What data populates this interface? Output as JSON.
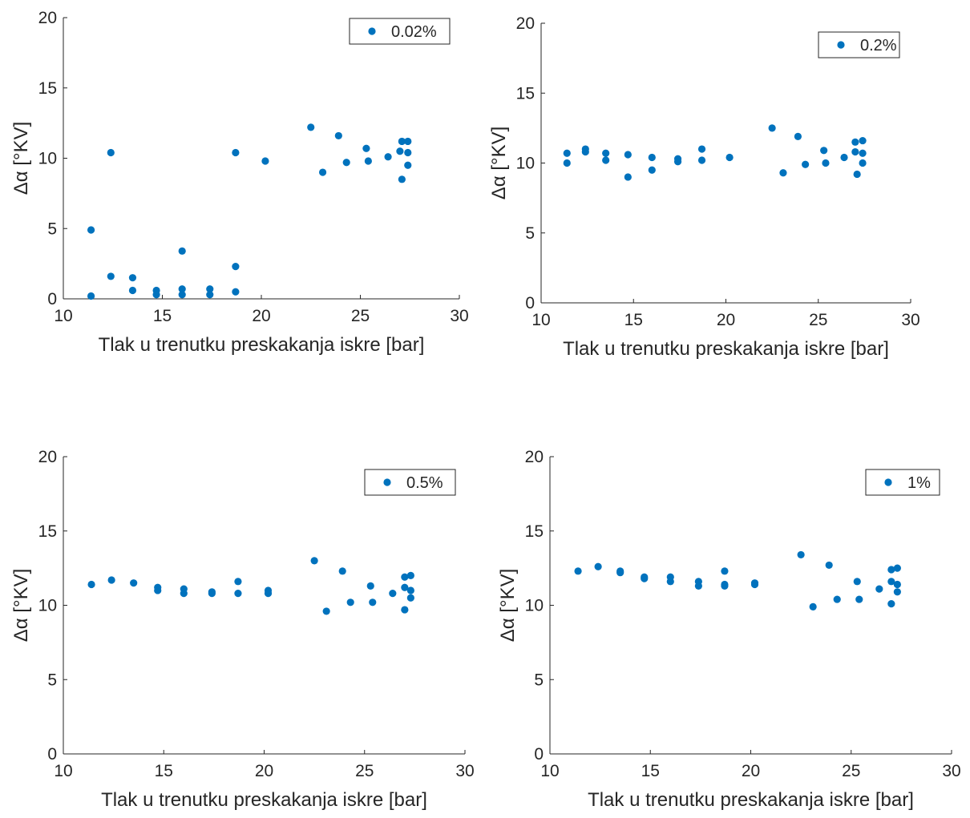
{
  "figure": {
    "marker_color": "#0072bd",
    "axis_color": "#262626"
  },
  "chart_data": [
    {
      "type": "scatter",
      "xlabel": "Tlak u trenutku preskakanja iskre [bar]",
      "ylabel": "Δα [°KV]",
      "xlim": [
        10,
        30
      ],
      "ylim": [
        0,
        20
      ],
      "xticks": [
        10,
        15,
        20,
        25,
        30
      ],
      "yticks": [
        0,
        5,
        10,
        15,
        20
      ],
      "grid": false,
      "legend_position": "top-right",
      "series": [
        {
          "name": "0.02%",
          "x": [
            11.4,
            11.4,
            12.4,
            12.4,
            13.5,
            13.5,
            14.7,
            14.7,
            16.0,
            16.0,
            16.0,
            17.4,
            17.4,
            18.7,
            18.7,
            18.7,
            20.2,
            22.5,
            23.1,
            23.9,
            24.3,
            25.3,
            25.4,
            26.4,
            27.0,
            27.1,
            27.1,
            27.4,
            27.4,
            27.4
          ],
          "y": [
            4.9,
            0.2,
            10.4,
            1.6,
            1.5,
            0.6,
            0.6,
            0.3,
            3.4,
            0.7,
            0.3,
            0.7,
            0.3,
            10.4,
            2.3,
            0.5,
            9.8,
            12.2,
            9.0,
            11.6,
            9.7,
            10.7,
            9.8,
            10.1,
            10.5,
            11.2,
            8.5,
            11.2,
            10.4,
            9.5
          ]
        }
      ]
    },
    {
      "type": "scatter",
      "xlabel": "Tlak u trenutku preskakanja iskre [bar]",
      "ylabel": "Δα [°KV]",
      "xlim": [
        10,
        30
      ],
      "ylim": [
        0,
        20
      ],
      "xticks": [
        10,
        15,
        20,
        25,
        30
      ],
      "yticks": [
        0,
        5,
        10,
        15,
        20
      ],
      "grid": false,
      "legend_position": "top-right",
      "series": [
        {
          "name": "0.2%",
          "x": [
            11.4,
            11.4,
            12.4,
            12.4,
            13.5,
            13.5,
            14.7,
            14.7,
            16.0,
            16.0,
            17.4,
            17.4,
            18.7,
            18.7,
            20.2,
            22.5,
            23.1,
            23.9,
            24.3,
            25.3,
            25.4,
            26.4,
            27.0,
            27.0,
            27.1,
            27.4,
            27.4,
            27.4
          ],
          "y": [
            10.7,
            10.0,
            11.0,
            10.8,
            10.7,
            10.2,
            10.6,
            9.0,
            10.4,
            9.5,
            10.3,
            10.1,
            11.0,
            10.2,
            10.4,
            12.5,
            9.3,
            11.9,
            9.9,
            10.9,
            10.0,
            10.4,
            11.5,
            10.8,
            9.2,
            11.6,
            10.7,
            10.0
          ]
        }
      ]
    },
    {
      "type": "scatter",
      "xlabel": "Tlak u trenutku preskakanja iskre [bar]",
      "ylabel": "Δα [°KV]",
      "xlim": [
        10,
        30
      ],
      "ylim": [
        0,
        20
      ],
      "xticks": [
        10,
        15,
        20,
        25,
        30
      ],
      "yticks": [
        0,
        5,
        10,
        15,
        20
      ],
      "grid": false,
      "legend_position": "top-right",
      "series": [
        {
          "name": "0.5%",
          "x": [
            11.4,
            12.4,
            13.5,
            14.7,
            14.7,
            16.0,
            16.0,
            17.4,
            17.4,
            18.7,
            18.7,
            20.2,
            20.2,
            22.5,
            23.1,
            23.9,
            24.3,
            25.3,
            25.4,
            26.4,
            27.0,
            27.0,
            27.0,
            27.3,
            27.3,
            27.3
          ],
          "y": [
            11.4,
            11.7,
            11.5,
            11.2,
            11.0,
            11.1,
            10.8,
            10.9,
            10.8,
            11.6,
            10.8,
            11.0,
            10.8,
            13.0,
            9.6,
            12.3,
            10.2,
            11.3,
            10.2,
            10.8,
            11.9,
            11.2,
            9.7,
            12.0,
            11.0,
            10.5
          ]
        }
      ]
    },
    {
      "type": "scatter",
      "xlabel": "Tlak u trenutku preskakanja iskre [bar]",
      "ylabel": "Δα [°KV]",
      "xlim": [
        10,
        30
      ],
      "ylim": [
        0,
        20
      ],
      "xticks": [
        10,
        15,
        20,
        25,
        30
      ],
      "yticks": [
        0,
        5,
        10,
        15,
        20
      ],
      "grid": false,
      "legend_position": "top-right",
      "series": [
        {
          "name": "1%",
          "x": [
            11.4,
            12.4,
            13.5,
            13.5,
            14.7,
            14.7,
            16.0,
            16.0,
            17.4,
            17.4,
            18.7,
            18.7,
            18.7,
            20.2,
            20.2,
            22.5,
            23.1,
            23.9,
            24.3,
            25.3,
            25.4,
            26.4,
            27.0,
            27.0,
            27.0,
            27.3,
            27.3,
            27.3
          ],
          "y": [
            12.3,
            12.6,
            12.3,
            12.2,
            11.9,
            11.8,
            11.9,
            11.6,
            11.6,
            11.3,
            12.3,
            11.4,
            11.3,
            11.5,
            11.4,
            13.4,
            9.9,
            12.7,
            10.4,
            11.6,
            10.4,
            11.1,
            12.4,
            11.6,
            10.1,
            12.5,
            11.4,
            10.9
          ]
        }
      ]
    }
  ]
}
